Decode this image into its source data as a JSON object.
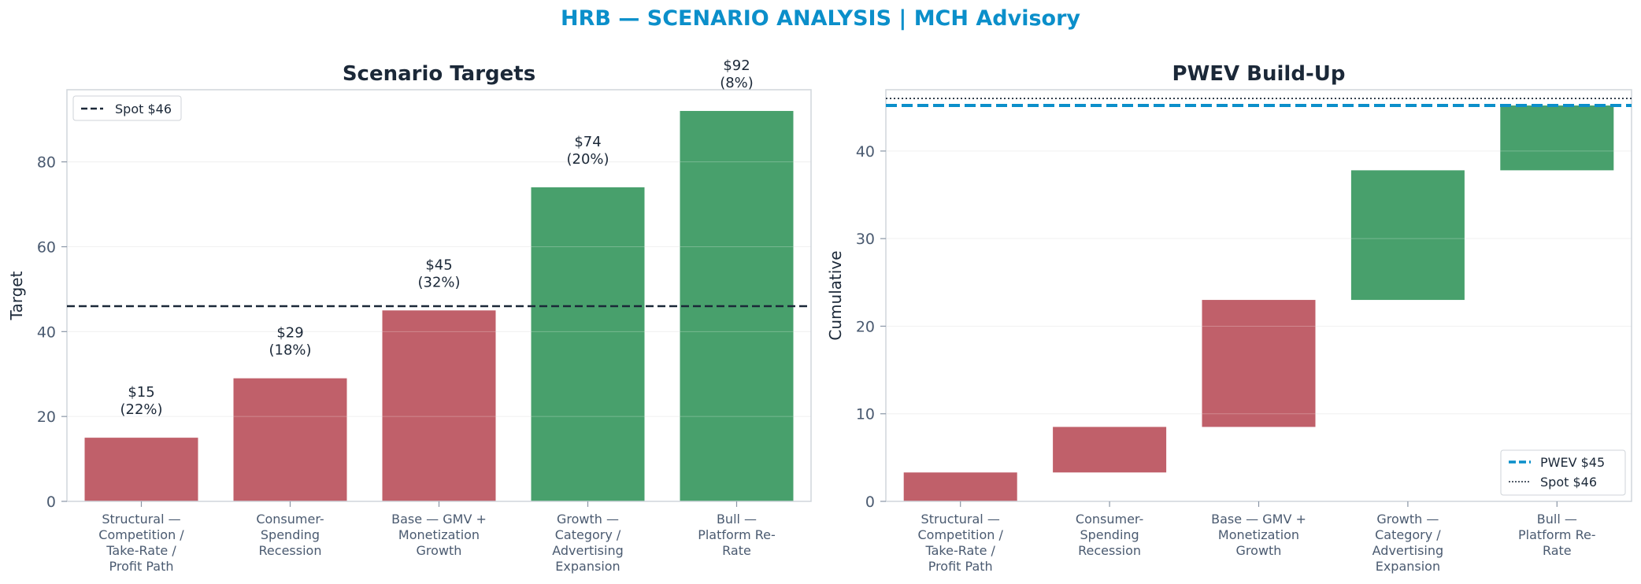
{
  "suptitle": "HRB — SCENARIO ANALYSIS | MCH Advisory",
  "colors": {
    "down": "#c0606a",
    "up": "#48a06c",
    "pwev": "#0b8fca",
    "spot": "#1b2838",
    "title": "#1b2838",
    "tick": "#4a5a70"
  },
  "chart_data": [
    {
      "type": "bar",
      "title": "Scenario Targets",
      "xlabel": "",
      "ylabel": "Target",
      "ylim": [
        0,
        97
      ],
      "yticks": [
        0,
        20,
        40,
        60,
        80
      ],
      "grid": "horizontal",
      "legend_position": "top-left",
      "categories": [
        [
          "Structural —",
          "Competition /",
          "Take-Rate /",
          "Profit Path"
        ],
        [
          "Consumer-",
          "Spending",
          "Recession"
        ],
        [
          "Base — GMV +",
          "Monetization",
          "Growth"
        ],
        [
          "Growth —",
          "Category /",
          "Advertising",
          "Expansion"
        ],
        [
          "Bull —",
          "Platform Re-",
          "Rate"
        ]
      ],
      "values": [
        15,
        29,
        45,
        74,
        92
      ],
      "data_labels": [
        [
          "$15",
          "(22%)"
        ],
        [
          "$29",
          "(18%)"
        ],
        [
          "$45",
          "(32%)"
        ],
        [
          "$74",
          "(20%)"
        ],
        [
          "$92",
          "(8%)"
        ]
      ],
      "bar_colors": [
        "down",
        "down",
        "down",
        "up",
        "up"
      ],
      "reference_line": {
        "label": "Spot $46",
        "value": 46,
        "style": "dashed"
      }
    },
    {
      "type": "waterfall",
      "title": "PWEV Build-Up",
      "xlabel": "",
      "ylabel": "Cumulative",
      "ylim": [
        0,
        47
      ],
      "yticks": [
        0,
        10,
        20,
        30,
        40
      ],
      "grid": "horizontal",
      "legend_position": "bottom-right",
      "categories": [
        [
          "Structural —",
          "Competition /",
          "Take-Rate /",
          "Profit Path"
        ],
        [
          "Consumer-",
          "Spending",
          "Recession"
        ],
        [
          "Base — GMV +",
          "Monetization",
          "Growth"
        ],
        [
          "Growth —",
          "Category /",
          "Advertising",
          "Expansion"
        ],
        [
          "Bull —",
          "Platform Re-",
          "Rate"
        ]
      ],
      "segments": [
        {
          "start": 0,
          "end": 3.3
        },
        {
          "start": 3.3,
          "end": 8.5
        },
        {
          "start": 8.5,
          "end": 23.0
        },
        {
          "start": 23.0,
          "end": 37.8
        },
        {
          "start": 37.8,
          "end": 45.2
        }
      ],
      "bar_colors": [
        "down",
        "down",
        "down",
        "up",
        "up"
      ],
      "reference_lines": [
        {
          "label": "PWEV $45",
          "value": 45.2,
          "style": "dashed"
        },
        {
          "label": "Spot $46",
          "value": 46.0,
          "style": "dotted"
        }
      ]
    }
  ]
}
